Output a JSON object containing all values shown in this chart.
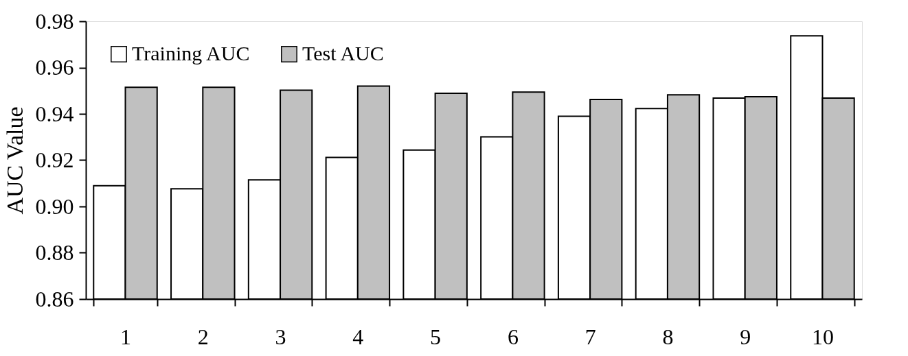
{
  "chart_data": {
    "type": "bar",
    "ylabel": "AUC Value",
    "categories": [
      "1",
      "2",
      "3",
      "4",
      "5",
      "6",
      "7",
      "8",
      "9",
      "10"
    ],
    "series": [
      {
        "name": "Training AUC",
        "color": "#ffffff",
        "values": [
          0.909,
          0.9076,
          0.9115,
          0.9212,
          0.9244,
          0.9301,
          0.939,
          0.9423,
          0.9468,
          0.9737
        ]
      },
      {
        "name": "Test AUC",
        "color": "#c0c0c0",
        "values": [
          0.9515,
          0.9515,
          0.9502,
          0.952,
          0.9489,
          0.9494,
          0.9462,
          0.9482,
          0.9474,
          0.9468
        ]
      }
    ],
    "ylim": [
      0.86,
      0.98
    ],
    "yticks": [
      {
        "value": 0.86,
        "label": "0.86"
      },
      {
        "value": 0.88,
        "label": "0.88"
      },
      {
        "value": 0.9,
        "label": "0.90"
      },
      {
        "value": 0.92,
        "label": "0.92"
      },
      {
        "value": 0.94,
        "label": "0.94"
      },
      {
        "value": 0.96,
        "label": "0.96"
      },
      {
        "value": 0.98,
        "label": "0.98"
      }
    ],
    "grid": false,
    "legend": "top left"
  }
}
